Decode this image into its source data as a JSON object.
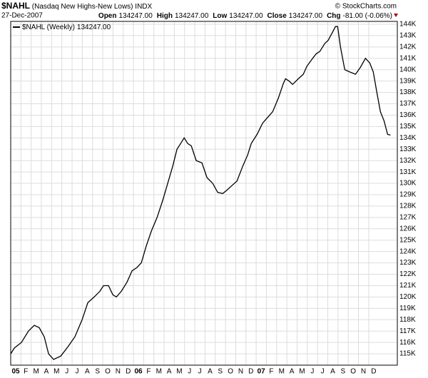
{
  "header": {
    "symbol": "$NAHL",
    "name": "(Nasdaq New Highs-New Lows)",
    "exchange": "INDX",
    "watermark": "© StockCharts.com",
    "date": "27-Dec-2007",
    "quote": [
      {
        "label": "Open",
        "value": "134247.00"
      },
      {
        "label": "High",
        "value": "134247.00"
      },
      {
        "label": "Low",
        "value": "134247.00"
      },
      {
        "label": "Close",
        "value": "134247.00"
      },
      {
        "label": "Chg",
        "value": "-81.00 (-0.06%)"
      }
    ]
  },
  "chart_data": {
    "type": "line",
    "grid": true,
    "series": [
      {
        "name": "$NAHL (Weekly)",
        "last_label": "134247.00",
        "color": "#000000",
        "x": [
          0,
          0.35,
          1.05,
          1.74,
          2.3,
          2.79,
          3.28,
          3.7,
          4.19,
          4.89,
          5.58,
          6.28,
          6.98,
          7.54,
          8.16,
          8.72,
          9.07,
          9.56,
          9.98,
          10.33,
          10.82,
          11.37,
          11.86,
          12.35,
          12.77,
          13.26,
          13.75,
          14.31,
          14.86,
          15.35,
          15.84,
          16.26,
          16.61,
          16.96,
          17.31,
          17.66,
          18.14,
          18.7,
          19.19,
          19.75,
          20.24,
          20.73,
          21.14,
          21.63,
          22.12,
          22.68,
          23.17,
          23.52,
          24.08,
          24.63,
          25.12,
          25.61,
          26.17,
          26.66,
          26.87,
          27.22,
          27.56,
          28.12,
          28.61,
          28.96,
          29.52,
          29.87,
          30.22,
          30.7,
          31.05,
          31.47,
          31.75,
          31.96,
          32.24,
          32.66,
          33.15,
          33.71,
          34.19,
          34.68,
          35.1,
          35.45,
          35.8,
          36.15,
          36.5,
          36.85,
          37.13
        ],
        "values": [
          115000,
          115500,
          116000,
          117000,
          117500,
          117300,
          116500,
          115000,
          114500,
          114800,
          115600,
          116500,
          118000,
          119500,
          120000,
          120500,
          121000,
          121000,
          120200,
          120000,
          120500,
          121300,
          122300,
          122600,
          123000,
          124500,
          125800,
          127000,
          128500,
          130000,
          131500,
          133000,
          133500,
          134000,
          133500,
          133300,
          132000,
          131800,
          130500,
          130000,
          129200,
          129100,
          129400,
          129800,
          130200,
          131500,
          132500,
          133500,
          134300,
          135300,
          135800,
          136300,
          137500,
          138800,
          139200,
          139000,
          138700,
          139200,
          139600,
          140300,
          141000,
          141400,
          141600,
          142300,
          142600,
          143300,
          143800,
          143800,
          142000,
          140000,
          139800,
          139600,
          140200,
          141000,
          140600,
          139800,
          138000,
          136300,
          135500,
          134300,
          134247
        ]
      }
    ],
    "xlim": [
      0,
      37.8
    ],
    "xticks": [
      {
        "value": 0,
        "label": "05"
      },
      {
        "value": 1,
        "label": "F"
      },
      {
        "value": 2,
        "label": "M"
      },
      {
        "value": 3,
        "label": "A"
      },
      {
        "value": 4,
        "label": "M"
      },
      {
        "value": 5,
        "label": "J"
      },
      {
        "value": 6,
        "label": "J"
      },
      {
        "value": 7,
        "label": "A"
      },
      {
        "value": 8,
        "label": "S"
      },
      {
        "value": 9,
        "label": "O"
      },
      {
        "value": 10,
        "label": "N"
      },
      {
        "value": 11,
        "label": "D"
      },
      {
        "value": 12,
        "label": "06"
      },
      {
        "value": 13,
        "label": "F"
      },
      {
        "value": 14,
        "label": "M"
      },
      {
        "value": 15,
        "label": "A"
      },
      {
        "value": 16,
        "label": "M"
      },
      {
        "value": 17,
        "label": "J"
      },
      {
        "value": 18,
        "label": "J"
      },
      {
        "value": 19,
        "label": "A"
      },
      {
        "value": 20,
        "label": "S"
      },
      {
        "value": 21,
        "label": "O"
      },
      {
        "value": 22,
        "label": "N"
      },
      {
        "value": 23,
        "label": "D"
      },
      {
        "value": 24,
        "label": "07"
      },
      {
        "value": 25,
        "label": "F"
      },
      {
        "value": 26,
        "label": "M"
      },
      {
        "value": 27,
        "label": "A"
      },
      {
        "value": 28,
        "label": "M"
      },
      {
        "value": 29,
        "label": "J"
      },
      {
        "value": 30,
        "label": "J"
      },
      {
        "value": 31,
        "label": "A"
      },
      {
        "value": 32,
        "label": "S"
      },
      {
        "value": 33,
        "label": "O"
      },
      {
        "value": 34,
        "label": "N"
      },
      {
        "value": 35,
        "label": "D"
      }
    ],
    "ylim": [
      114000,
      144250
    ],
    "yticks": [
      {
        "value": 115000,
        "label": "115K"
      },
      {
        "value": 116000,
        "label": "116K"
      },
      {
        "value": 117000,
        "label": "117K"
      },
      {
        "value": 118000,
        "label": "118K"
      },
      {
        "value": 119000,
        "label": "119K"
      },
      {
        "value": 120000,
        "label": "120K"
      },
      {
        "value": 121000,
        "label": "121K"
      },
      {
        "value": 122000,
        "label": "122K"
      },
      {
        "value": 123000,
        "label": "123K"
      },
      {
        "value": 124000,
        "label": "124K"
      },
      {
        "value": 125000,
        "label": "125K"
      },
      {
        "value": 126000,
        "label": "126K"
      },
      {
        "value": 127000,
        "label": "127K"
      },
      {
        "value": 128000,
        "label": "128K"
      },
      {
        "value": 129000,
        "label": "129K"
      },
      {
        "value": 130000,
        "label": "130K"
      },
      {
        "value": 131000,
        "label": "131K"
      },
      {
        "value": 132000,
        "label": "132K"
      },
      {
        "value": 133000,
        "label": "133K"
      },
      {
        "value": 134000,
        "label": "134K"
      },
      {
        "value": 135000,
        "label": "135K"
      },
      {
        "value": 136000,
        "label": "136K"
      },
      {
        "value": 137000,
        "label": "137K"
      },
      {
        "value": 138000,
        "label": "138K"
      },
      {
        "value": 139000,
        "label": "139K"
      },
      {
        "value": 140000,
        "label": "140K"
      },
      {
        "value": 141000,
        "label": "141K"
      },
      {
        "value": 142000,
        "label": "142K"
      },
      {
        "value": 143000,
        "label": "143K"
      },
      {
        "value": 144000,
        "label": "144K"
      }
    ]
  }
}
